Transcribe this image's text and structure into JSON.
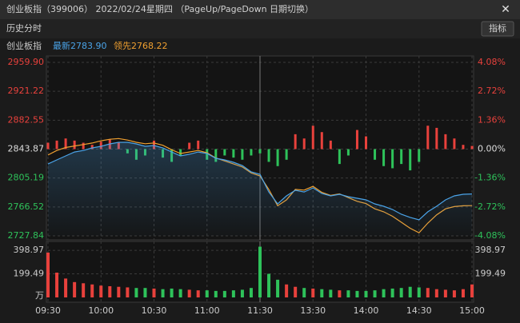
{
  "window": {
    "title": "创业板指（399006）   2022/02/24星期四   （PageUp/PageDown 日期切换）",
    "close": "✕"
  },
  "toolbar": {
    "tab": "历史分时",
    "button": "指标"
  },
  "chart_data": {
    "type": "line",
    "index_name": "创业板指",
    "categories": [
      "09:30",
      null,
      null,
      null,
      null,
      null,
      "10:00",
      null,
      null,
      null,
      null,
      null,
      "10:30",
      null,
      null,
      null,
      null,
      null,
      "11:00",
      null,
      null,
      null,
      null,
      null,
      "11:30",
      null,
      null,
      null,
      null,
      null,
      "13:30",
      null,
      null,
      null,
      null,
      null,
      "14:00",
      null,
      null,
      null,
      null,
      null,
      "14:30",
      null,
      null,
      null,
      null,
      null,
      "15:00"
    ],
    "series": [
      {
        "name": "最新2783.90",
        "color": "#4aa3e8",
        "values": [
          2824,
          2829.4,
          2834.8,
          2840,
          2842,
          2845.5,
          2847.6,
          2850.8,
          2853,
          2853,
          2850.8,
          2847.6,
          2848.7,
          2845.5,
          2840,
          2834.8,
          2837,
          2840,
          2838,
          2831.6,
          2829.4,
          2826.2,
          2822,
          2813.4,
          2810.2,
          2786.6,
          2770.6,
          2781.3,
          2788.8,
          2786.6,
          2792,
          2784.5,
          2781.3,
          2783.4,
          2780.2,
          2778.1,
          2776,
          2770.6,
          2767.4,
          2763.1,
          2756.7,
          2752.5,
          2749.2,
          2760,
          2767.4,
          2776,
          2781.3,
          2783.4,
          2783.9
        ]
      },
      {
        "name": "领先2768.22",
        "color": "#f0a030",
        "values": [
          2836,
          2842,
          2846,
          2848,
          2850,
          2852,
          2855,
          2857,
          2858,
          2856,
          2853,
          2851,
          2852,
          2849,
          2843,
          2838,
          2840,
          2842,
          2839,
          2832,
          2828,
          2824,
          2820,
          2812,
          2808,
          2790,
          2768,
          2776,
          2790,
          2789,
          2794,
          2786,
          2782,
          2784,
          2779,
          2774,
          2771,
          2764,
          2760,
          2754,
          2746,
          2738,
          2732,
          2745,
          2756,
          2764,
          2767,
          2768,
          2768.22
        ]
      },
      {
        "type": "bar",
        "axis": "y2",
        "up_color": "#e8413c",
        "down_color": "#2ec25a",
        "values": [
          0.3,
          0.4,
          0.5,
          0.4,
          0.3,
          0.2,
          0.35,
          0.45,
          0.3,
          -0.2,
          -0.5,
          -0.3,
          0.4,
          -0.4,
          -0.6,
          -0.3,
          0.3,
          0.4,
          -0.5,
          -0.6,
          -0.3,
          -0.4,
          -0.5,
          -0.3,
          -0.2,
          -0.6,
          -0.8,
          -0.5,
          0.7,
          0.5,
          1.1,
          0.8,
          0.4,
          -0.7,
          -0.3,
          0.9,
          0.6,
          -0.5,
          -0.8,
          -0.9,
          -0.7,
          -1.0,
          -0.6,
          1.1,
          1.0,
          0.7,
          0.5,
          0.2,
          0.15
        ]
      }
    ],
    "ylim": [
      2727.84,
      2959.9
    ],
    "yticks": [
      {
        "value": 2959.9,
        "label": "2959.90"
      },
      2921.22,
      2882.55,
      2843.87,
      2805.19,
      2766.52,
      2727.84
    ],
    "y2lim": [
      -4.08,
      4.08
    ],
    "y2ticks": [
      {
        "value": 4.08,
        "label": "4.08%"
      },
      {
        "value": 2.72,
        "label": "2.72%"
      },
      {
        "value": 1.36,
        "label": "1.36%"
      },
      {
        "value": 0,
        "label": "0.00%"
      },
      {
        "value": -1.36,
        "label": "-1.36%"
      },
      {
        "value": -2.72,
        "label": "-2.72%"
      },
      {
        "value": -4.08,
        "label": "-4.08%"
      }
    ],
    "volume": {
      "unit": "万",
      "values": [
        380,
        210,
        160,
        130,
        120,
        110,
        100,
        95,
        90,
        85,
        80,
        80,
        75,
        70,
        75,
        70,
        65,
        60,
        60,
        55,
        55,
        60,
        65,
        80,
        430,
        200,
        150,
        110,
        90,
        80,
        75,
        70,
        65,
        60,
        60,
        55,
        55,
        60,
        70,
        75,
        80,
        90,
        85,
        80,
        70,
        65,
        60,
        70,
        110
      ],
      "ylim": [
        0,
        454
      ],
      "yticks": [
        398.97,
        199.49
      ]
    },
    "up_color": "#e8413c",
    "down_color": "#2ec25a",
    "flat_color": "#dddddd",
    "grid": true
  }
}
